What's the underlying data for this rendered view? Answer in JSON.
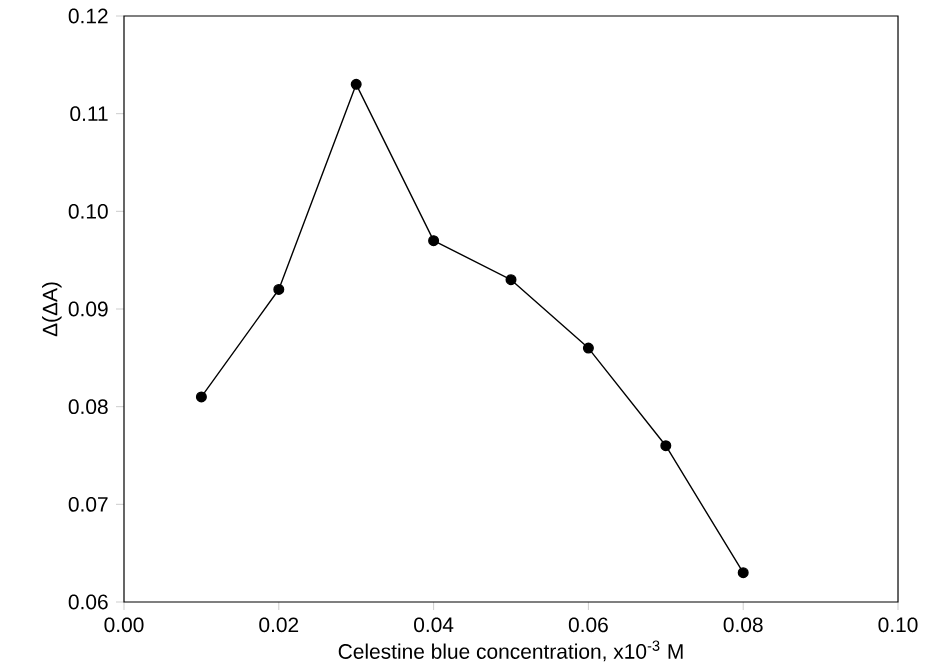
{
  "chart_data": {
    "type": "line",
    "xlabel": "Celestine blue concentration, x10$^{-3}$ M",
    "ylabel": "Δ(ΔA)",
    "x": [
      0.01,
      0.02,
      0.03,
      0.04,
      0.05,
      0.06,
      0.07,
      0.08
    ],
    "series": [
      {
        "color": "#000000",
        "values": [
          0.081,
          0.092,
          0.113,
          0.097,
          0.093,
          0.086,
          0.076,
          0.063
        ]
      }
    ],
    "marker": "circle",
    "line_style": "solid",
    "xlim": [
      0,
      0.1
    ],
    "xticks": [
      {
        "value": 0,
        "label": "0.00"
      },
      0.02,
      0.04,
      0.06,
      0.08,
      {
        "value": 0.1,
        "label": "0.10"
      }
    ],
    "ylim": [
      0.06,
      0.12
    ],
    "yticks": [
      0.06,
      0.07,
      0.08,
      0.09,
      {
        "value": 0.1,
        "label": "0.10"
      },
      0.11,
      0.12
    ]
  }
}
